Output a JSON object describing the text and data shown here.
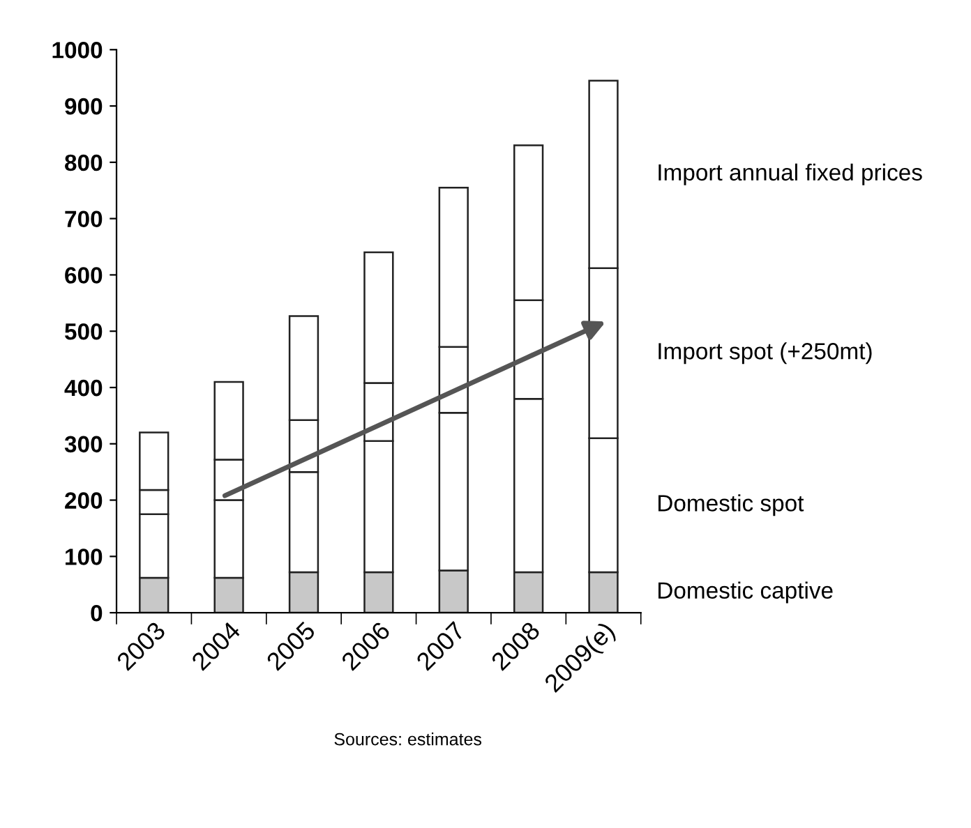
{
  "chart_data": {
    "type": "bar",
    "stacked": true,
    "categories": [
      "2003",
      "2004",
      "2005",
      "2006",
      "2007",
      "2008",
      "2009(e)"
    ],
    "series": [
      {
        "name": "Domestic captive",
        "color": "#c8c8c8",
        "values": [
          62,
          62,
          72,
          72,
          75,
          72,
          72
        ]
      },
      {
        "name": "Domestic spot",
        "color": "#ffffff",
        "values": [
          113,
          138,
          178,
          233,
          280,
          308,
          238
        ]
      },
      {
        "name": "Import spot (+250mt)",
        "color": "#ffffff",
        "values": [
          43,
          72,
          92,
          103,
          117,
          175,
          302
        ]
      },
      {
        "name": "Import annual fixed prices",
        "color": "#ffffff",
        "values": [
          102,
          138,
          185,
          232,
          283,
          275,
          333
        ]
      }
    ],
    "ylim": [
      0,
      1000
    ],
    "yticks": [
      0,
      100,
      200,
      300,
      400,
      500,
      600,
      700,
      800,
      900,
      1000
    ],
    "grid": false,
    "legend": false,
    "annotations": [
      "Sources: estimates"
    ]
  }
}
